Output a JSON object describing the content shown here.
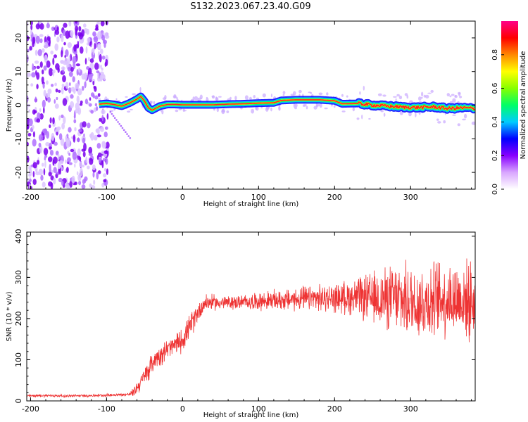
{
  "figure": {
    "title": "S132.2023.067.23.40.G09"
  },
  "chart_data": [
    {
      "type": "heatmap",
      "title": "S132.2023.067.23.40.G09",
      "xlabel": "Height of straight line (km)",
      "ylabel": "Frequency (Hz)",
      "xlim": [
        -205,
        385
      ],
      "ylim": [
        -25,
        25
      ],
      "x_ticks": [
        -200,
        -100,
        0,
        100,
        200,
        300
      ],
      "y_ticks": [
        -20,
        -10,
        0,
        10,
        20
      ],
      "colorbar": {
        "label": "Normalized spectral amplitude",
        "range": [
          0,
          1
        ],
        "ticks": [
          0.0,
          0.2,
          0.4,
          0.6,
          0.8
        ],
        "colormap": [
          "#ffffff",
          "#d9a6ff",
          "#8800ff",
          "#0000ff",
          "#00ccff",
          "#00ff66",
          "#88ff00",
          "#ffff00",
          "#ff8800",
          "#ff0000",
          "#ff0088"
        ]
      },
      "noise_region_x": [
        -205,
        -98
      ],
      "ridge": {
        "description_free": true,
        "x": [
          -110,
          -100,
          -90,
          -80,
          -70,
          -60,
          -55,
          -50,
          -45,
          -40,
          -30,
          -20,
          -10,
          0,
          20,
          40,
          60,
          80,
          100,
          120,
          130,
          150,
          180,
          200,
          210,
          230,
          250,
          270,
          290,
          310,
          330,
          350,
          370,
          385
        ],
        "y": [
          0.3,
          0.5,
          0.2,
          -0.3,
          0.6,
          1.8,
          2.6,
          1.2,
          -0.8,
          -1.5,
          -0.3,
          0.2,
          0.2,
          0.1,
          0.1,
          0.1,
          0.3,
          0.4,
          0.6,
          0.7,
          1.4,
          1.6,
          1.6,
          1.3,
          0.4,
          0.5,
          0.0,
          -0.3,
          -0.6,
          -0.7,
          -0.5,
          -1.0,
          -0.8,
          -1.0
        ]
      },
      "colors": {
        "ridge_core": "#ff2020",
        "ridge_mid": "#00ff66",
        "ridge_outer": "#0000ff",
        "noise": "#8800ff"
      }
    },
    {
      "type": "line",
      "title": "",
      "xlabel": "Height of straight line (km)",
      "ylabel": "SNR (10 * v/v)",
      "xlim": [
        -205,
        385
      ],
      "ylim": [
        0,
        410
      ],
      "x_ticks": [
        -200,
        -100,
        0,
        100,
        200,
        300
      ],
      "y_ticks": [
        0,
        100,
        200,
        300,
        400
      ],
      "color": "#ee3333",
      "series": [
        {
          "x": [
            -205,
            -180,
            -150,
            -120,
            -100,
            -80,
            -70,
            -65,
            -55,
            -45,
            -35,
            -20,
            -10,
            0,
            10,
            20,
            30,
            50,
            80,
            100,
            130,
            160,
            200,
            230,
            250,
            270,
            290,
            310,
            330,
            350,
            370,
            385
          ],
          "y": [
            12,
            13,
            12,
            13,
            14,
            15,
            16,
            20,
            45,
            75,
            105,
            125,
            135,
            150,
            180,
            215,
            240,
            238,
            240,
            242,
            245,
            248,
            250,
            252,
            248,
            250,
            245,
            240,
            245,
            250,
            245,
            240
          ],
          "spread": [
            4,
            4,
            4,
            4,
            4,
            4,
            6,
            12,
            25,
            30,
            30,
            30,
            30,
            35,
            35,
            30,
            25,
            20,
            20,
            25,
            30,
            35,
            40,
            55,
            75,
            90,
            100,
            110,
            110,
            110,
            110,
            110
          ]
        }
      ]
    }
  ]
}
